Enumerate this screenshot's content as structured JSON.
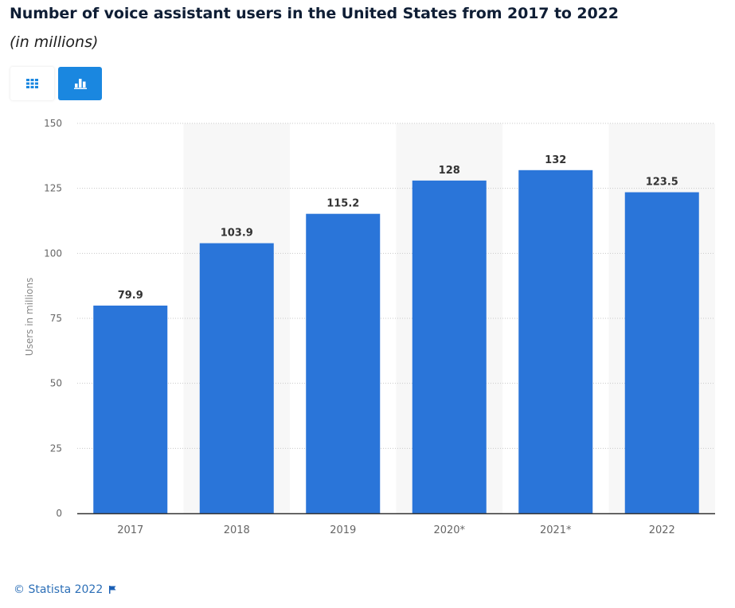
{
  "header": {
    "title": "Number of voice assistant users in the United States from 2017 to 2022",
    "subtitle": "(in millions)"
  },
  "toolbar": {
    "table_view": {
      "icon": "table-grid-icon",
      "active": false
    },
    "chart_view": {
      "icon": "bar-chart-icon",
      "active": true
    }
  },
  "colors": {
    "bar": "#2a75d9",
    "accent": "#1a87e0",
    "band": "#f7f7f7",
    "grid": "#c8c8c8",
    "axis": "#333333",
    "tick_label": "#666666",
    "value_label": "#333333",
    "footer": "#2c6fb7"
  },
  "chart_data": {
    "type": "bar",
    "title": "Number of voice assistant users in the United States from 2017 to 2022",
    "subtitle": "(in millions)",
    "categories": [
      "2017",
      "2018",
      "2019",
      "2020*",
      "2021*",
      "2022"
    ],
    "values": [
      79.9,
      103.9,
      115.2,
      128,
      132,
      123.5
    ],
    "value_labels": [
      "79.9",
      "103.9",
      "115.2",
      "128",
      "132",
      "123.5"
    ],
    "xlabel": "",
    "ylabel": "Users in millions",
    "ylim": [
      0,
      150
    ],
    "yticks": [
      0,
      25,
      50,
      75,
      100,
      125,
      150
    ],
    "grid": true,
    "legend": "none"
  },
  "footer": {
    "copyright": "© Statista 2022",
    "icon": "flag-icon"
  }
}
